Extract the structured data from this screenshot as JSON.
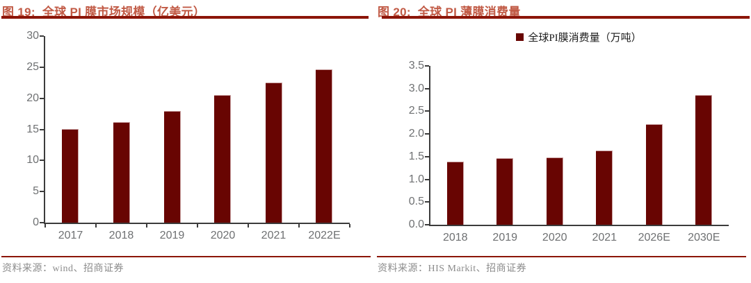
{
  "figures": [
    {
      "title": "图 19:  全球 PI 膜市场规模（亿美元）",
      "source": "资料来源：wind、招商证券"
    },
    {
      "title": "图 20:  全球 PI 薄膜消费量",
      "source": "资料来源：HIS Markit、招商证券"
    }
  ],
  "chart_data": [
    {
      "type": "bar",
      "title": "图 19: 全球 PI 膜市场规模（亿美元）",
      "categories": [
        "2017",
        "2018",
        "2019",
        "2020",
        "2021",
        "2022E"
      ],
      "values": [
        15.1,
        16.2,
        18.0,
        20.5,
        22.5,
        24.6
      ],
      "ylabel": "亿美元",
      "xlabel": "",
      "ylim": [
        0,
        30
      ],
      "yticks": [
        "0",
        "5",
        "10",
        "15",
        "20",
        "25",
        "30"
      ],
      "grid": false,
      "legend": null,
      "legend_position": "none",
      "bar_color": "#680502"
    },
    {
      "type": "bar",
      "title": "图 20: 全球 PI 薄膜消费量",
      "categories": [
        "2018",
        "2019",
        "2020",
        "2021",
        "2026E",
        "2030E"
      ],
      "values": [
        1.39,
        1.46,
        1.49,
        1.63,
        2.21,
        2.86
      ],
      "ylabel": "万吨",
      "xlabel": "",
      "ylim": [
        0,
        3.5
      ],
      "yticks": [
        "0.0",
        "0.5",
        "1.0",
        "1.5",
        "2.0",
        "2.5",
        "3.0",
        "3.5"
      ],
      "grid": false,
      "legend": [
        "全球PI膜消费量（万吨）"
      ],
      "legend_position": "top",
      "bar_color": "#680502"
    }
  ],
  "colors": {
    "bar": "#680502",
    "title": "#C15A45",
    "rule": "#8C1508",
    "axis": "#3b3b3b",
    "tick_label": "#6E7072",
    "source_text": "#8C8C8C"
  }
}
